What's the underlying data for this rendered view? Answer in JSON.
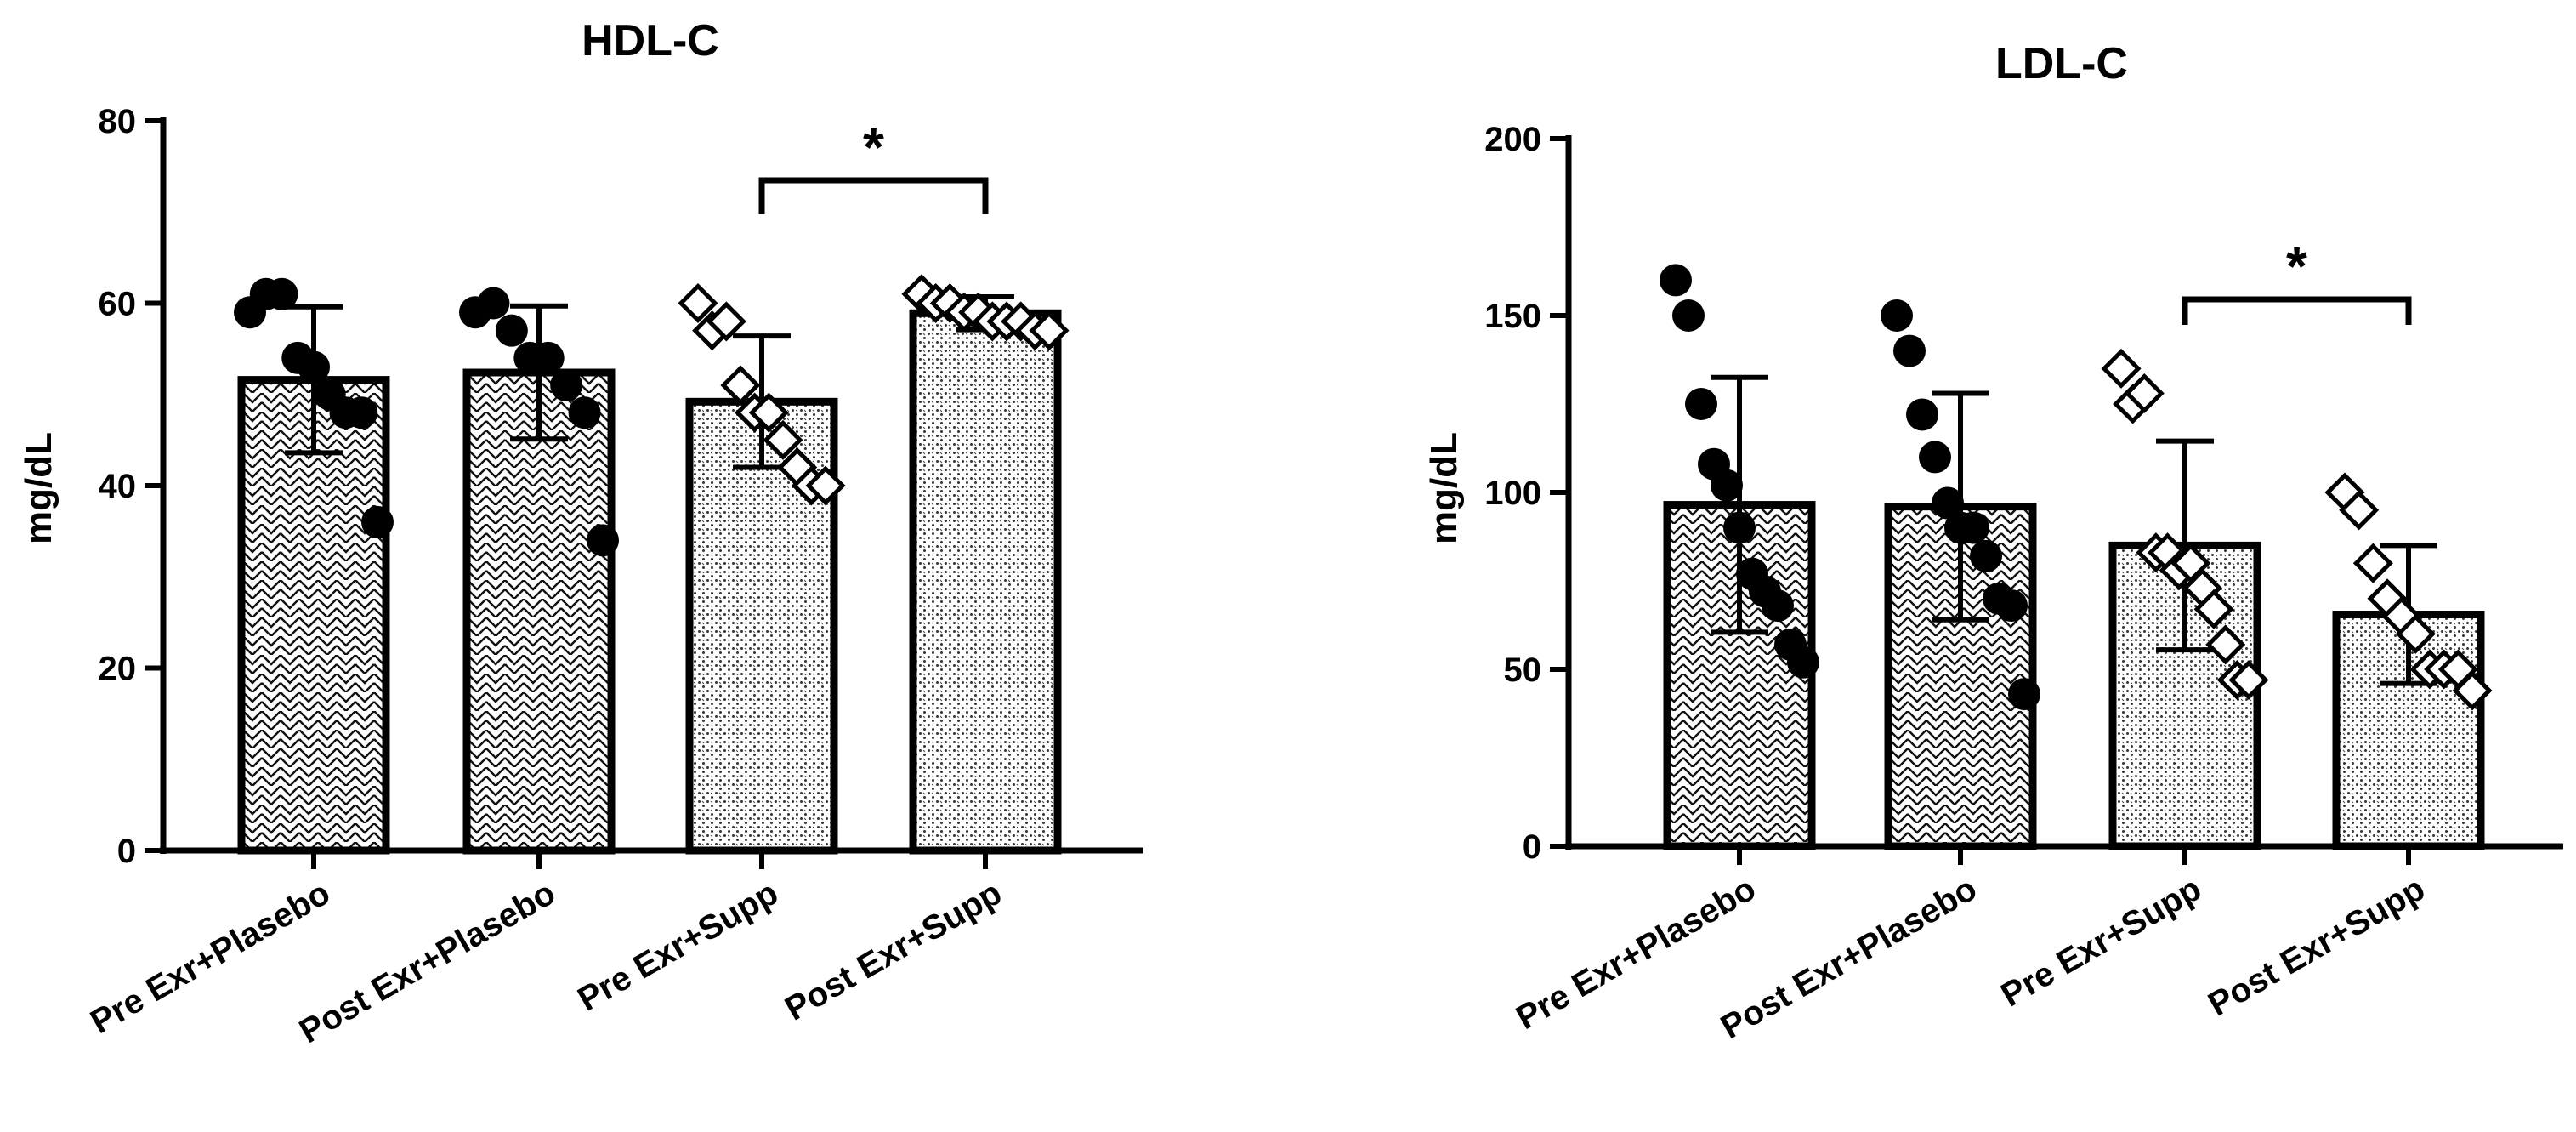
{
  "chart_data": [
    {
      "type": "bar",
      "title": "HDL-C",
      "ylabel": "mg/dL",
      "xlabel": "",
      "ylim": [
        0,
        80
      ],
      "yticks": [
        0,
        20,
        40,
        60,
        80
      ],
      "categories": [
        "Pre Exr+Plasebo",
        "Post Exr+Plasebo",
        "Pre Exr+Supp",
        "Post Exr+Supp"
      ],
      "values": [
        51.6,
        52.4,
        49.2,
        58.9
      ],
      "sd": [
        8.0,
        7.3,
        7.2,
        1.8
      ],
      "patterns": [
        "crosshatch",
        "crosshatch",
        "dots",
        "dots"
      ],
      "marker": [
        "circle",
        "circle",
        "diamond",
        "diamond"
      ],
      "points": [
        [
          59,
          61,
          61,
          54,
          53,
          50,
          48,
          48,
          36
        ],
        [
          59,
          60,
          57,
          54,
          54,
          51,
          48,
          34
        ],
        [
          60,
          57,
          58,
          51,
          48,
          48,
          45,
          42,
          40,
          40
        ],
        [
          61,
          60,
          60,
          59,
          59,
          58,
          58,
          58,
          57,
          57
        ]
      ],
      "significance": {
        "between": [
          2,
          3
        ],
        "label": "*"
      }
    },
    {
      "type": "bar",
      "title": "LDL-C",
      "ylabel": "mg/dL",
      "xlabel": "",
      "ylim": [
        0,
        200
      ],
      "yticks": [
        0,
        50,
        100,
        150,
        200
      ],
      "categories": [
        "Pre Exr+Plasebo",
        "Post Exr+Plasebo",
        "Pre Exr+Supp",
        "Post Exr+Supp"
      ],
      "values": [
        96.5,
        96.0,
        85.0,
        65.5
      ],
      "sd": [
        36.0,
        32.0,
        29.5,
        19.5
      ],
      "patterns": [
        "crosshatch",
        "crosshatch",
        "dots",
        "dots"
      ],
      "marker": [
        "circle",
        "circle",
        "diamond",
        "diamond"
      ],
      "points": [
        [
          160,
          150,
          125,
          108,
          102,
          90,
          77,
          72,
          68,
          57,
          52
        ],
        [
          150,
          140,
          122,
          110,
          97,
          90,
          90,
          82,
          70,
          68,
          43
        ],
        [
          135,
          125,
          128,
          83,
          83,
          78,
          80,
          73,
          67,
          57,
          47,
          47
        ],
        [
          100,
          95,
          80,
          70,
          65,
          60,
          50,
          50,
          50,
          44
        ]
      ],
      "significance": {
        "between": [
          2,
          3
        ],
        "label": "*"
      }
    }
  ]
}
